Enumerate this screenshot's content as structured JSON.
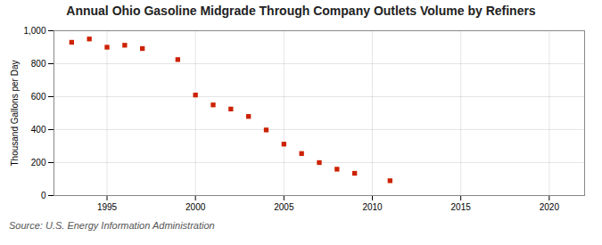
{
  "chart_data": {
    "type": "scatter",
    "title": "Annual Ohio Gasoline Midgrade Through Company Outlets Volume by Refiners",
    "ylabel": "Thousand Gallons per Day",
    "caption": "Source: U.S. Energy Information Administration",
    "x": [
      1993,
      1994,
      1995,
      1996,
      1997,
      1999,
      2000,
      2001,
      2002,
      2003,
      2004,
      2005,
      2006,
      2007,
      2008,
      2009,
      2011
    ],
    "values": [
      930,
      950,
      900,
      912,
      892,
      825,
      610,
      550,
      525,
      480,
      398,
      312,
      255,
      200,
      160,
      135,
      90
    ],
    "color": "#cc2200",
    "marker": "square",
    "xlim": [
      1992,
      2022
    ],
    "xticks": [
      1995,
      2000,
      2005,
      2010,
      2015,
      2020
    ],
    "ylim": [
      0,
      1000
    ],
    "yticks": [
      0,
      200,
      400,
      600,
      800,
      {
        "value": 1000,
        "label": "1,000"
      }
    ],
    "grid": true
  }
}
